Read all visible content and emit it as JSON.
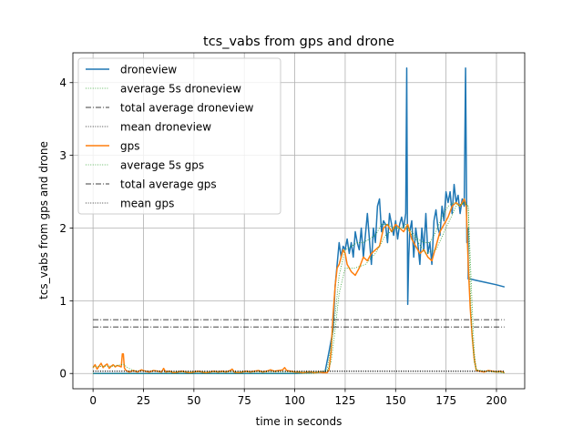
{
  "chart_data": {
    "type": "line",
    "title": "tcs_vabs from gps and drone",
    "xlabel": "time in seconds",
    "ylabel": "tcs_vabs from gps and drone",
    "xlim": [
      -10,
      214
    ],
    "ylim": [
      -0.21,
      4.41
    ],
    "xticks": [
      0,
      25,
      50,
      75,
      100,
      125,
      150,
      175,
      200
    ],
    "yticks": [
      0,
      1,
      2,
      3,
      4
    ],
    "grid": true,
    "legend_position": "top-left",
    "series": [
      {
        "name": "droneview",
        "color": "#1f77b4",
        "style": "solid",
        "x": [
          0,
          20,
          40,
          60,
          80,
          100,
          115,
          117,
          119,
          120,
          121,
          122,
          123,
          124,
          125,
          126,
          127,
          128,
          129,
          130,
          131,
          132,
          133,
          134,
          135,
          136,
          137,
          138,
          139,
          140,
          141,
          142,
          143,
          144,
          145,
          146,
          147,
          148,
          149,
          150,
          151,
          152,
          153,
          154,
          155,
          155.5,
          156,
          156.5,
          157,
          158,
          159,
          160,
          161,
          162,
          163,
          164,
          165,
          166,
          167,
          168,
          169,
          170,
          171,
          172,
          173,
          174,
          175,
          176,
          177,
          178,
          179,
          180,
          181,
          182,
          183,
          184,
          184.7,
          185.3,
          185.9,
          186,
          187,
          190,
          195,
          200,
          204
        ],
        "y": [
          0,
          0,
          0,
          0,
          0,
          0,
          0.02,
          0.3,
          0.6,
          1.2,
          1.5,
          1.8,
          1.6,
          1.75,
          1.7,
          1.85,
          1.65,
          1.8,
          1.6,
          1.95,
          1.8,
          1.7,
          2.0,
          1.6,
          1.9,
          2.2,
          1.85,
          1.5,
          2.0,
          1.8,
          2.3,
          2.4,
          1.95,
          2.1,
          2.05,
          1.8,
          2.2,
          2.05,
          1.9,
          2.1,
          1.85,
          2.05,
          2.15,
          2.0,
          2.2,
          4.2,
          0.95,
          1.6,
          1.95,
          2.1,
          1.6,
          2.0,
          1.8,
          1.5,
          2.0,
          1.7,
          2.2,
          1.65,
          1.8,
          1.5,
          2.1,
          2.25,
          2.0,
          1.9,
          2.3,
          2.1,
          2.5,
          2.35,
          2.5,
          2.2,
          2.6,
          2.35,
          2.45,
          2.2,
          2.4,
          2.3,
          4.2,
          1.8,
          2.0,
          1.3,
          1.3,
          1.28,
          1.25,
          1.22,
          1.19
        ]
      },
      {
        "name": "average 5s droneview",
        "color": "#2ca02c",
        "style": "dotted",
        "x": [
          0,
          30,
          60,
          90,
          110,
          116,
          118,
          120,
          122,
          125,
          128,
          131,
          134,
          137,
          140,
          143,
          146,
          149,
          152,
          155,
          158,
          161,
          164,
          167,
          170,
          173,
          176,
          179,
          182,
          184,
          186,
          187,
          188,
          189,
          190,
          192,
          195,
          200,
          204
        ],
        "y": [
          0,
          0,
          0,
          0,
          0,
          0.05,
          0.35,
          0.8,
          1.35,
          1.7,
          1.75,
          1.8,
          1.8,
          1.85,
          1.9,
          2.05,
          2.05,
          2.0,
          2.0,
          2.05,
          1.95,
          1.85,
          1.8,
          1.8,
          1.95,
          2.15,
          2.3,
          2.35,
          2.3,
          2.35,
          2.3,
          1.6,
          0.9,
          0.3,
          0.05,
          0.03,
          0.03,
          0.02,
          0.01
        ]
      },
      {
        "name": "total average droneview",
        "color": "#000000",
        "style": "dashdot",
        "x": [
          0,
          204
        ],
        "y": [
          0.74,
          0.74
        ]
      },
      {
        "name": "mean droneview",
        "color": "#000000",
        "style": "dotted",
        "x": [
          0,
          204
        ],
        "y": [
          0.035,
          0.035
        ]
      },
      {
        "name": "gps",
        "color": "#ff7f0e",
        "style": "solid",
        "x": [
          0,
          1,
          2,
          3,
          4,
          5,
          6,
          7,
          8,
          9,
          10,
          11,
          12,
          13,
          14,
          14.5,
          15,
          15.5,
          16,
          17,
          18,
          20,
          22,
          24,
          26,
          28,
          30,
          32,
          34,
          35,
          36,
          38,
          40,
          42,
          44,
          46,
          48,
          50,
          52,
          54,
          56,
          58,
          60,
          62,
          64,
          66,
          68,
          69,
          70,
          72,
          74,
          76,
          78,
          80,
          82,
          84,
          86,
          88,
          90,
          92,
          94,
          95,
          96,
          98,
          100,
          102,
          104,
          106,
          108,
          110,
          112,
          114,
          116,
          117,
          118,
          119,
          120,
          121,
          122,
          123,
          124,
          125,
          126,
          128,
          130,
          132,
          134,
          136,
          138,
          140,
          142,
          144,
          146,
          148,
          150,
          152,
          154,
          156,
          158,
          160,
          162,
          164,
          166,
          168,
          170,
          172,
          174,
          176,
          178,
          180,
          182,
          184,
          185,
          186,
          187,
          188,
          189,
          190,
          192,
          194,
          196,
          198,
          200,
          202,
          204
        ],
        "y": [
          0.08,
          0.12,
          0.06,
          0.1,
          0.14,
          0.08,
          0.11,
          0.13,
          0.07,
          0.1,
          0.12,
          0.09,
          0.11,
          0.1,
          0.09,
          0.27,
          0.27,
          0.08,
          0.05,
          0.03,
          0.02,
          0.04,
          0.02,
          0.05,
          0.03,
          0.02,
          0.04,
          0.03,
          0.02,
          0.07,
          0.02,
          0.03,
          0.01,
          0.02,
          0.03,
          0.02,
          0.01,
          0.02,
          0.03,
          0.02,
          0.01,
          0.02,
          0.03,
          0.02,
          0.03,
          0.02,
          0.04,
          0.06,
          0.02,
          0.01,
          0.02,
          0.03,
          0.02,
          0.03,
          0.04,
          0.02,
          0.03,
          0.05,
          0.03,
          0.04,
          0.05,
          0.08,
          0.04,
          0.03,
          0.02,
          0.02,
          0.01,
          0.02,
          0.02,
          0.01,
          0.02,
          0.01,
          0.01,
          0.05,
          0.3,
          0.8,
          1.2,
          1.45,
          1.5,
          1.6,
          1.7,
          1.65,
          1.5,
          1.4,
          1.35,
          1.45,
          1.6,
          1.55,
          1.65,
          1.7,
          1.75,
          2.0,
          2.05,
          1.95,
          2.05,
          2.0,
          1.95,
          2.05,
          1.85,
          1.75,
          1.65,
          1.7,
          1.6,
          1.55,
          1.75,
          1.95,
          2.05,
          2.15,
          2.3,
          2.35,
          2.3,
          2.4,
          2.3,
          1.5,
          0.9,
          0.5,
          0.2,
          0.04,
          0.03,
          0.02,
          0.04,
          0.03,
          0.02,
          0.03,
          0.01
        ]
      },
      {
        "name": "average 5s gps",
        "color": "#2ca02c",
        "style": "dotted",
        "x": [
          0,
          5,
          10,
          14,
          15,
          17,
          20,
          40,
          60,
          80,
          100,
          110,
          116,
          118,
          120,
          122,
          125,
          130,
          135,
          140,
          145,
          150,
          155,
          160,
          165,
          170,
          175,
          180,
          184,
          186,
          187,
          188,
          189,
          190,
          195,
          200,
          204
        ],
        "y": [
          0.09,
          0.1,
          0.1,
          0.12,
          0.13,
          0.08,
          0.04,
          0.02,
          0.02,
          0.02,
          0.02,
          0.02,
          0.03,
          0.15,
          0.6,
          1.1,
          1.45,
          1.45,
          1.5,
          1.65,
          1.9,
          2.0,
          2.0,
          1.85,
          1.65,
          1.7,
          2.0,
          2.3,
          2.35,
          2.3,
          1.2,
          0.5,
          0.15,
          0.05,
          0.03,
          0.02,
          0.01
        ]
      },
      {
        "name": "total average gps",
        "color": "#000000",
        "style": "dashdot",
        "x": [
          0,
          204
        ],
        "y": [
          0.64,
          0.64
        ]
      },
      {
        "name": "mean gps",
        "color": "#000000",
        "style": "dotted",
        "x": [
          0,
          204
        ],
        "y": [
          0.028,
          0.028
        ]
      }
    ]
  }
}
